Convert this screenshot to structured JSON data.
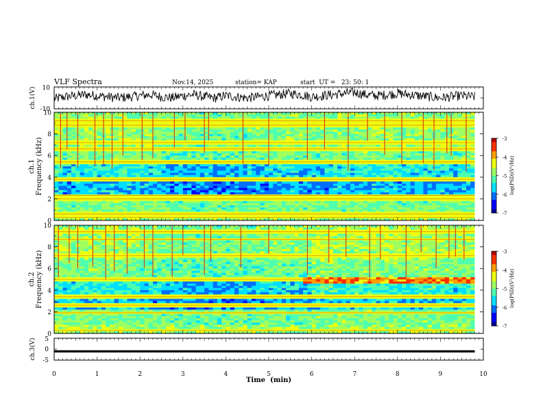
{
  "header": {
    "title": "VLF Spectra",
    "date": "Nov.14, 2025",
    "station": "station= KAP",
    "start_ut": "start  UT =   23: 50: 1"
  },
  "colormap": [
    "#00008f",
    "#0000ff",
    "#006fff",
    "#00dfff",
    "#4fffaf",
    "#9fff5f",
    "#efff0f",
    "#ff9f00",
    "#ff3000",
    "#af0000"
  ],
  "chart_data": [
    {
      "id": "ch1-waveform",
      "type": "line",
      "ylabel": "ch.1(V)",
      "ylim": [
        -10,
        10
      ],
      "y_tick_labels": [
        "10",
        "-10"
      ],
      "xlim": [
        0,
        10
      ],
      "x": [
        0,
        0.25,
        0.5,
        0.75,
        1,
        1.25,
        1.5,
        1.75,
        2,
        2.25,
        2.5,
        2.75,
        3,
        3.25,
        3.5,
        3.75,
        4,
        4.25,
        4.5,
        4.75,
        5,
        5.25,
        5.5,
        5.75,
        6,
        6.25,
        6.5,
        6.75,
        7,
        7.25,
        7.5,
        7.75,
        8,
        8.25,
        8.5,
        8.75,
        9,
        9.25,
        9.5,
        9.75
      ],
      "values": [
        -1,
        1,
        2,
        3,
        2,
        1,
        0,
        1,
        2,
        3,
        1,
        0,
        2,
        3,
        1,
        0,
        2,
        1,
        0,
        1,
        2,
        3,
        4,
        3,
        1,
        2,
        3,
        4,
        5,
        3,
        2,
        3,
        4,
        3,
        2,
        1,
        0,
        1,
        2,
        1
      ]
    },
    {
      "id": "ch1-spectrogram",
      "type": "heatmap",
      "ylabel": "ch.1\nFrequency (kHz)",
      "ylabel_lines": [
        "ch.1",
        "Frequency (kHz)"
      ],
      "ylim": [
        0,
        10
      ],
      "y_tick_labels": [
        "0",
        "2",
        "4",
        "6",
        "8",
        "10"
      ],
      "xlim": [
        0,
        9.8
      ],
      "colorbar": {
        "label": "log(PSD)(V²/Hz)",
        "range": [
          -7,
          -3
        ],
        "tick_labels": [
          "-3",
          "-4",
          "-5",
          "-6",
          "-7"
        ]
      },
      "band_levels_kHz_from_0": [
        0.6,
        0.4,
        0.5,
        0.55,
        0.5,
        0.55,
        0.55,
        0.5,
        0.5,
        0.45,
        0.35,
        0.3,
        0.25,
        0.2,
        0.3,
        0.2,
        0.3,
        0.25,
        0.35,
        0.35,
        0.4,
        0.45,
        0.45,
        0.35,
        0.3,
        0.4,
        0.5,
        0.45,
        0.5,
        0.55,
        0.5,
        0.55,
        0.4,
        0.45,
        0.45,
        0.5,
        0.5,
        0.4,
        0.55,
        0.55
      ],
      "strong_lines_kHz": [
        0.3,
        0.6,
        2.0,
        2.3,
        3.8,
        5.4,
        6.6,
        7.2,
        8.8,
        9.2
      ],
      "impulse_times_min": [
        0.15,
        0.3,
        0.55,
        0.95,
        1.15,
        1.35,
        1.6,
        2.05,
        2.3,
        2.8,
        3.05,
        3.5,
        3.6,
        4.4,
        5.0,
        5.9,
        6.3,
        6.85,
        7.3,
        7.7,
        8.1,
        8.6,
        8.85,
        9.15,
        9.25,
        9.6
      ]
    },
    {
      "id": "ch2-spectrogram",
      "type": "heatmap",
      "ylabel": "ch.2\nFrequency (kHz)",
      "ylabel_lines": [
        "ch.2",
        "Frequency (kHz)"
      ],
      "ylim": [
        0,
        10
      ],
      "y_tick_labels": [
        "0",
        "2",
        "4",
        "6",
        "8",
        "10"
      ],
      "xlim": [
        0,
        9.8
      ],
      "colorbar": {
        "label": "log(PSD)(V²/Hz)",
        "range": [
          -7,
          -3
        ],
        "tick_labels": [
          "-3",
          "-4",
          "-5",
          "-6",
          "-7"
        ]
      },
      "band_levels_kHz_from_0": [
        0.55,
        0.5,
        0.5,
        0.55,
        0.5,
        0.55,
        0.5,
        0.5,
        0.45,
        0.4,
        0.35,
        0.3,
        0.25,
        0.2,
        0.25,
        0.2,
        0.25,
        0.3,
        0.3,
        0.35,
        0.4,
        0.45,
        0.4,
        0.35,
        0.6,
        0.65,
        0.6,
        0.55,
        0.6,
        0.6,
        0.55,
        0.6,
        0.55,
        0.55,
        0.6,
        0.6,
        0.55,
        0.5,
        0.55,
        0.55
      ],
      "strong_lines_kHz": [
        0.3,
        1.9,
        2.6,
        3.4,
        5.0,
        7.2,
        8.7,
        9.4
      ],
      "step_change_time_min": 5.85,
      "impulse_times_min": [
        0.1,
        0.35,
        0.55,
        0.9,
        1.2,
        1.4,
        1.7,
        2.1,
        2.3,
        2.75,
        3.0,
        3.5,
        3.65,
        4.35,
        5.0,
        5.9,
        6.4,
        6.8,
        7.35,
        7.6,
        8.2,
        8.55,
        8.9,
        9.2,
        9.35,
        9.55
      ]
    },
    {
      "id": "ch3-waveform",
      "type": "line",
      "ylabel": "ch.3(V)",
      "ylim": [
        -5,
        5
      ],
      "y_tick_labels": [
        "5",
        "0",
        "-5"
      ],
      "xlim": [
        0,
        10
      ],
      "xlabel": "Time  (min)",
      "x_tick_labels": [
        "0",
        "1",
        "2",
        "3",
        "4",
        "5",
        "6",
        "7",
        "8",
        "9",
        "10"
      ],
      "x": [
        0,
        9.8
      ],
      "values": [
        -1,
        -1
      ],
      "band_halfwidth_V": 0.5
    }
  ]
}
